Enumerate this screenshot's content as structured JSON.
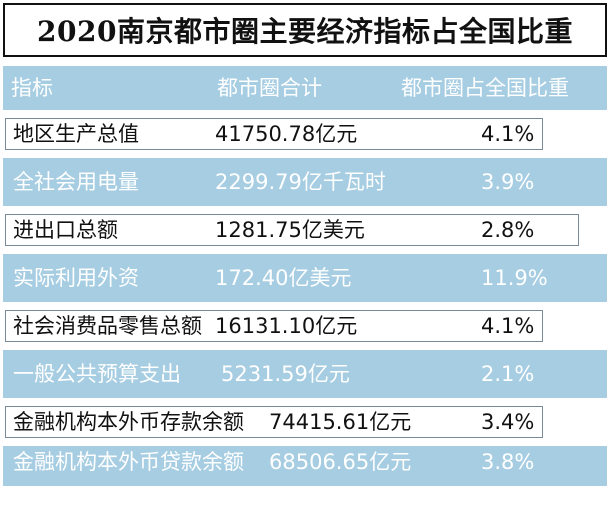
{
  "title": "2020南京都市圈主要经济指标占全国比重",
  "header": {
    "indicator": "指标",
    "total": "都市圈合计",
    "share": "都市圈占全国比重"
  },
  "rows": [
    {
      "name": "地区生产总值",
      "total": "41750.78亿元",
      "share": "4.1%"
    },
    {
      "name": "全社会用电量",
      "total": "2299.79亿千瓦时",
      "share": "3.9%"
    },
    {
      "name": "进出口总额",
      "total": "1281.75亿美元",
      "share": "2.8%"
    },
    {
      "name": "实际利用外资",
      "total": "172.40亿美元",
      "share": "11.9%"
    },
    {
      "name": "社会消费品零售总额",
      "total": "16131.10亿元",
      "share": "4.1%"
    },
    {
      "name": "一般公共预算支出",
      "total": "5231.59亿元",
      "share": "2.1%"
    },
    {
      "name": "金融机构本外币存款余额",
      "total": "74415.61亿元",
      "share": "3.4%"
    },
    {
      "name": "金融机构本外币贷款余额",
      "total": "68506.65亿元",
      "share": "3.8%"
    }
  ],
  "colors": {
    "band": "#a6cde2",
    "text_dark": "#111111",
    "text_light": "#ffffff"
  }
}
